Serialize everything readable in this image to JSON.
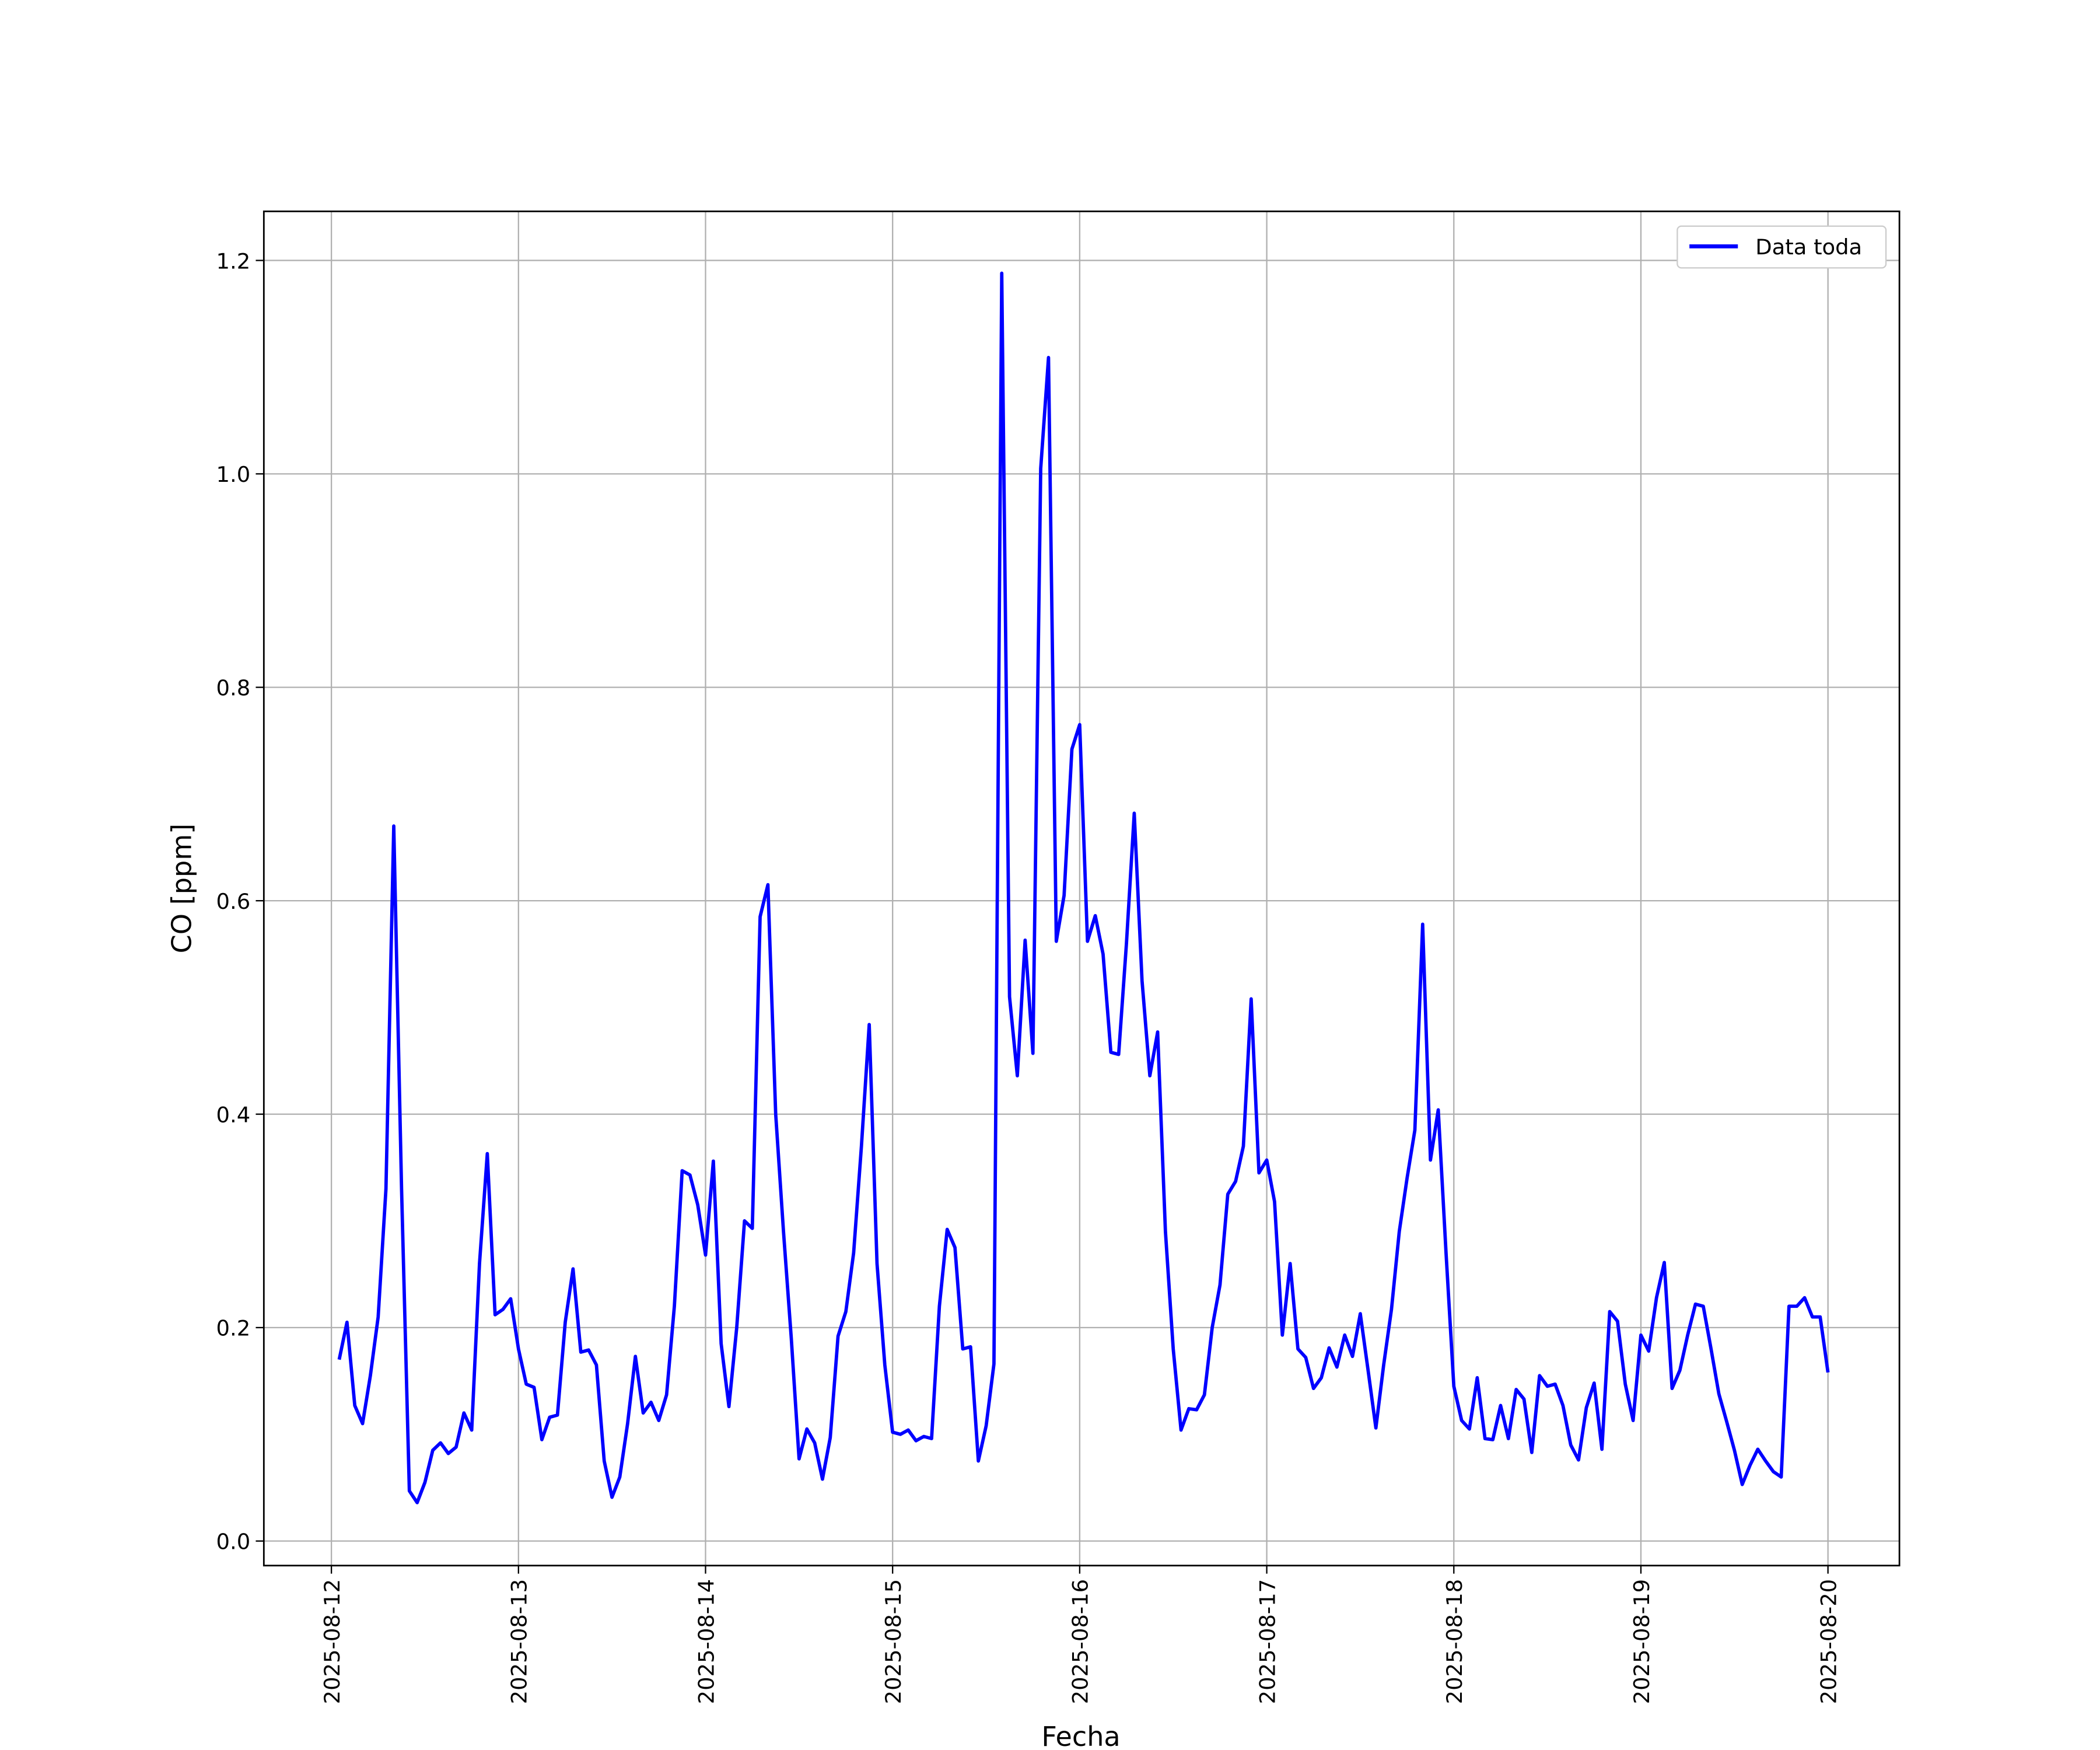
{
  "chart_data": {
    "type": "line",
    "ylabel": "CO [ppm]",
    "xlabel": "Fecha",
    "x": [
      "2025-08-12T01:00",
      "2025-08-12T02:00",
      "2025-08-12T03:00",
      "2025-08-12T04:00",
      "2025-08-12T05:00",
      "2025-08-12T06:00",
      "2025-08-12T07:00",
      "2025-08-12T08:00",
      "2025-08-12T09:00",
      "2025-08-12T10:00",
      "2025-08-12T11:00",
      "2025-08-12T12:00",
      "2025-08-12T13:00",
      "2025-08-12T14:00",
      "2025-08-12T15:00",
      "2025-08-12T16:00",
      "2025-08-12T17:00",
      "2025-08-12T18:00",
      "2025-08-12T19:00",
      "2025-08-12T20:00",
      "2025-08-12T21:00",
      "2025-08-12T22:00",
      "2025-08-12T23:00",
      "2025-08-13T00:00",
      "2025-08-13T01:00",
      "2025-08-13T02:00",
      "2025-08-13T03:00",
      "2025-08-13T04:00",
      "2025-08-13T05:00",
      "2025-08-13T06:00",
      "2025-08-13T07:00",
      "2025-08-13T08:00",
      "2025-08-13T09:00",
      "2025-08-13T10:00",
      "2025-08-13T11:00",
      "2025-08-13T12:00",
      "2025-08-13T13:00",
      "2025-08-13T14:00",
      "2025-08-13T15:00",
      "2025-08-13T16:00",
      "2025-08-13T17:00",
      "2025-08-13T18:00",
      "2025-08-13T19:00",
      "2025-08-13T20:00",
      "2025-08-13T21:00",
      "2025-08-13T22:00",
      "2025-08-13T23:00",
      "2025-08-14T00:00",
      "2025-08-14T01:00",
      "2025-08-14T02:00",
      "2025-08-14T03:00",
      "2025-08-14T04:00",
      "2025-08-14T05:00",
      "2025-08-14T06:00",
      "2025-08-14T07:00",
      "2025-08-14T08:00",
      "2025-08-14T09:00",
      "2025-08-14T10:00",
      "2025-08-14T11:00",
      "2025-08-14T12:00",
      "2025-08-14T13:00",
      "2025-08-14T14:00",
      "2025-08-14T15:00",
      "2025-08-14T16:00",
      "2025-08-14T17:00",
      "2025-08-14T18:00",
      "2025-08-14T19:00",
      "2025-08-14T20:00",
      "2025-08-14T21:00",
      "2025-08-14T22:00",
      "2025-08-14T23:00",
      "2025-08-15T00:00",
      "2025-08-15T01:00",
      "2025-08-15T02:00",
      "2025-08-15T03:00",
      "2025-08-15T04:00",
      "2025-08-15T05:00",
      "2025-08-15T06:00",
      "2025-08-15T07:00",
      "2025-08-15T08:00",
      "2025-08-15T09:00",
      "2025-08-15T10:00",
      "2025-08-15T11:00",
      "2025-08-15T12:00",
      "2025-08-15T13:00",
      "2025-08-15T14:00",
      "2025-08-15T15:00",
      "2025-08-15T16:00",
      "2025-08-15T17:00",
      "2025-08-15T18:00",
      "2025-08-15T19:00",
      "2025-08-15T20:00",
      "2025-08-15T21:00",
      "2025-08-15T22:00",
      "2025-08-15T23:00",
      "2025-08-16T00:00",
      "2025-08-16T01:00",
      "2025-08-16T02:00",
      "2025-08-16T03:00",
      "2025-08-16T04:00",
      "2025-08-16T05:00",
      "2025-08-16T06:00",
      "2025-08-16T07:00",
      "2025-08-16T08:00",
      "2025-08-16T09:00",
      "2025-08-16T10:00",
      "2025-08-16T11:00",
      "2025-08-16T12:00",
      "2025-08-16T13:00",
      "2025-08-16T14:00",
      "2025-08-16T15:00",
      "2025-08-16T16:00",
      "2025-08-16T17:00",
      "2025-08-16T18:00",
      "2025-08-16T19:00",
      "2025-08-16T20:00",
      "2025-08-16T21:00",
      "2025-08-16T22:00",
      "2025-08-16T23:00",
      "2025-08-17T00:00",
      "2025-08-17T01:00",
      "2025-08-17T02:00",
      "2025-08-17T03:00",
      "2025-08-17T04:00",
      "2025-08-17T05:00",
      "2025-08-17T06:00",
      "2025-08-17T07:00",
      "2025-08-17T08:00",
      "2025-08-17T09:00",
      "2025-08-17T10:00",
      "2025-08-17T11:00",
      "2025-08-17T12:00",
      "2025-08-17T13:00",
      "2025-08-17T14:00",
      "2025-08-17T15:00",
      "2025-08-17T16:00",
      "2025-08-17T17:00",
      "2025-08-17T18:00",
      "2025-08-17T19:00",
      "2025-08-17T20:00",
      "2025-08-17T21:00",
      "2025-08-17T22:00",
      "2025-08-17T23:00",
      "2025-08-18T00:00",
      "2025-08-18T01:00",
      "2025-08-18T02:00",
      "2025-08-18T03:00",
      "2025-08-18T04:00",
      "2025-08-18T05:00",
      "2025-08-18T06:00",
      "2025-08-18T07:00",
      "2025-08-18T08:00",
      "2025-08-18T09:00",
      "2025-08-18T10:00",
      "2025-08-18T11:00",
      "2025-08-18T12:00",
      "2025-08-18T13:00",
      "2025-08-18T14:00",
      "2025-08-18T15:00",
      "2025-08-18T16:00",
      "2025-08-18T17:00",
      "2025-08-18T18:00",
      "2025-08-18T19:00",
      "2025-08-18T20:00",
      "2025-08-18T21:00",
      "2025-08-18T22:00",
      "2025-08-18T23:00",
      "2025-08-19T00:00",
      "2025-08-19T01:00",
      "2025-08-19T02:00",
      "2025-08-19T03:00",
      "2025-08-19T04:00",
      "2025-08-19T05:00",
      "2025-08-19T06:00",
      "2025-08-19T07:00",
      "2025-08-19T08:00",
      "2025-08-19T09:00",
      "2025-08-19T10:00",
      "2025-08-19T11:00",
      "2025-08-19T12:00",
      "2025-08-19T13:00",
      "2025-08-19T14:00",
      "2025-08-19T15:00",
      "2025-08-19T16:00",
      "2025-08-19T17:00",
      "2025-08-19T18:00",
      "2025-08-19T19:00",
      "2025-08-19T20:00",
      "2025-08-19T21:00",
      "2025-08-19T22:00",
      "2025-08-19T23:00",
      "2025-08-20T00:00"
    ],
    "series": [
      {
        "name": "Data toda",
        "color": "#0000ff",
        "values": [
          0.17,
          0.205,
          0.127,
          0.11,
          0.155,
          0.21,
          0.33,
          0.67,
          0.33,
          0.047,
          0.036,
          0.055,
          0.085,
          0.092,
          0.082,
          0.088,
          0.12,
          0.104,
          0.26,
          0.363,
          0.212,
          0.217,
          0.227,
          0.18,
          0.147,
          0.144,
          0.095,
          0.116,
          0.118,
          0.205,
          0.255,
          0.177,
          0.179,
          0.165,
          0.075,
          0.041,
          0.06,
          0.11,
          0.173,
          0.12,
          0.13,
          0.113,
          0.137,
          0.22,
          0.347,
          0.343,
          0.315,
          0.268,
          0.356,
          0.185,
          0.126,
          0.2,
          0.3,
          0.293,
          0.585,
          0.615,
          0.4,
          0.29,
          0.19,
          0.077,
          0.105,
          0.092,
          0.058,
          0.097,
          0.192,
          0.215,
          0.27,
          0.37,
          0.484,
          0.26,
          0.165,
          0.102,
          0.1,
          0.104,
          0.094,
          0.098,
          0.096,
          0.22,
          0.292,
          0.275,
          0.18,
          0.182,
          0.075,
          0.108,
          0.166,
          1.188,
          0.51,
          0.436,
          0.563,
          0.457,
          1.005,
          1.109,
          0.562,
          0.605,
          0.742,
          0.765,
          0.562,
          0.586,
          0.55,
          0.458,
          0.456,
          0.56,
          0.682,
          0.525,
          0.436,
          0.477,
          0.29,
          0.18,
          0.104,
          0.124,
          0.123,
          0.137,
          0.2,
          0.24,
          0.325,
          0.337,
          0.37,
          0.508,
          0.345,
          0.357,
          0.318,
          0.193,
          0.26,
          0.18,
          0.172,
          0.143,
          0.153,
          0.181,
          0.163,
          0.193,
          0.173,
          0.213,
          0.16,
          0.106,
          0.165,
          0.217,
          0.29,
          0.34,
          0.385,
          0.578,
          0.357,
          0.404,
          0.27,
          0.145,
          0.113,
          0.105,
          0.153,
          0.096,
          0.095,
          0.127,
          0.096,
          0.142,
          0.133,
          0.083,
          0.155,
          0.145,
          0.147,
          0.127,
          0.09,
          0.076,
          0.125,
          0.148,
          0.086,
          0.215,
          0.206,
          0.147,
          0.113,
          0.193,
          0.178,
          0.228,
          0.261,
          0.143,
          0.16,
          0.193,
          0.222,
          0.22,
          0.18,
          0.138,
          0.112,
          0.085,
          0.053,
          0.071,
          0.086,
          0.075,
          0.065,
          0.06,
          0.22,
          0.22,
          0.228,
          0.21,
          0.21,
          0.158
        ]
      }
    ],
    "xlim": [
      "2025-08-11T15:20",
      "2025-08-20T09:10"
    ],
    "xticks": [
      "2025-08-12",
      "2025-08-13",
      "2025-08-14",
      "2025-08-15",
      "2025-08-16",
      "2025-08-17",
      "2025-08-18",
      "2025-08-19",
      "2025-08-20"
    ],
    "ylim": [
      -0.023,
      1.246
    ],
    "yticks": [
      {
        "value": 0,
        "label": "0.0"
      },
      0.2,
      0.4,
      0.6,
      0.8,
      {
        "value": 1,
        "label": "1.0"
      },
      1.2
    ],
    "grid": true,
    "legend": "upper right"
  }
}
